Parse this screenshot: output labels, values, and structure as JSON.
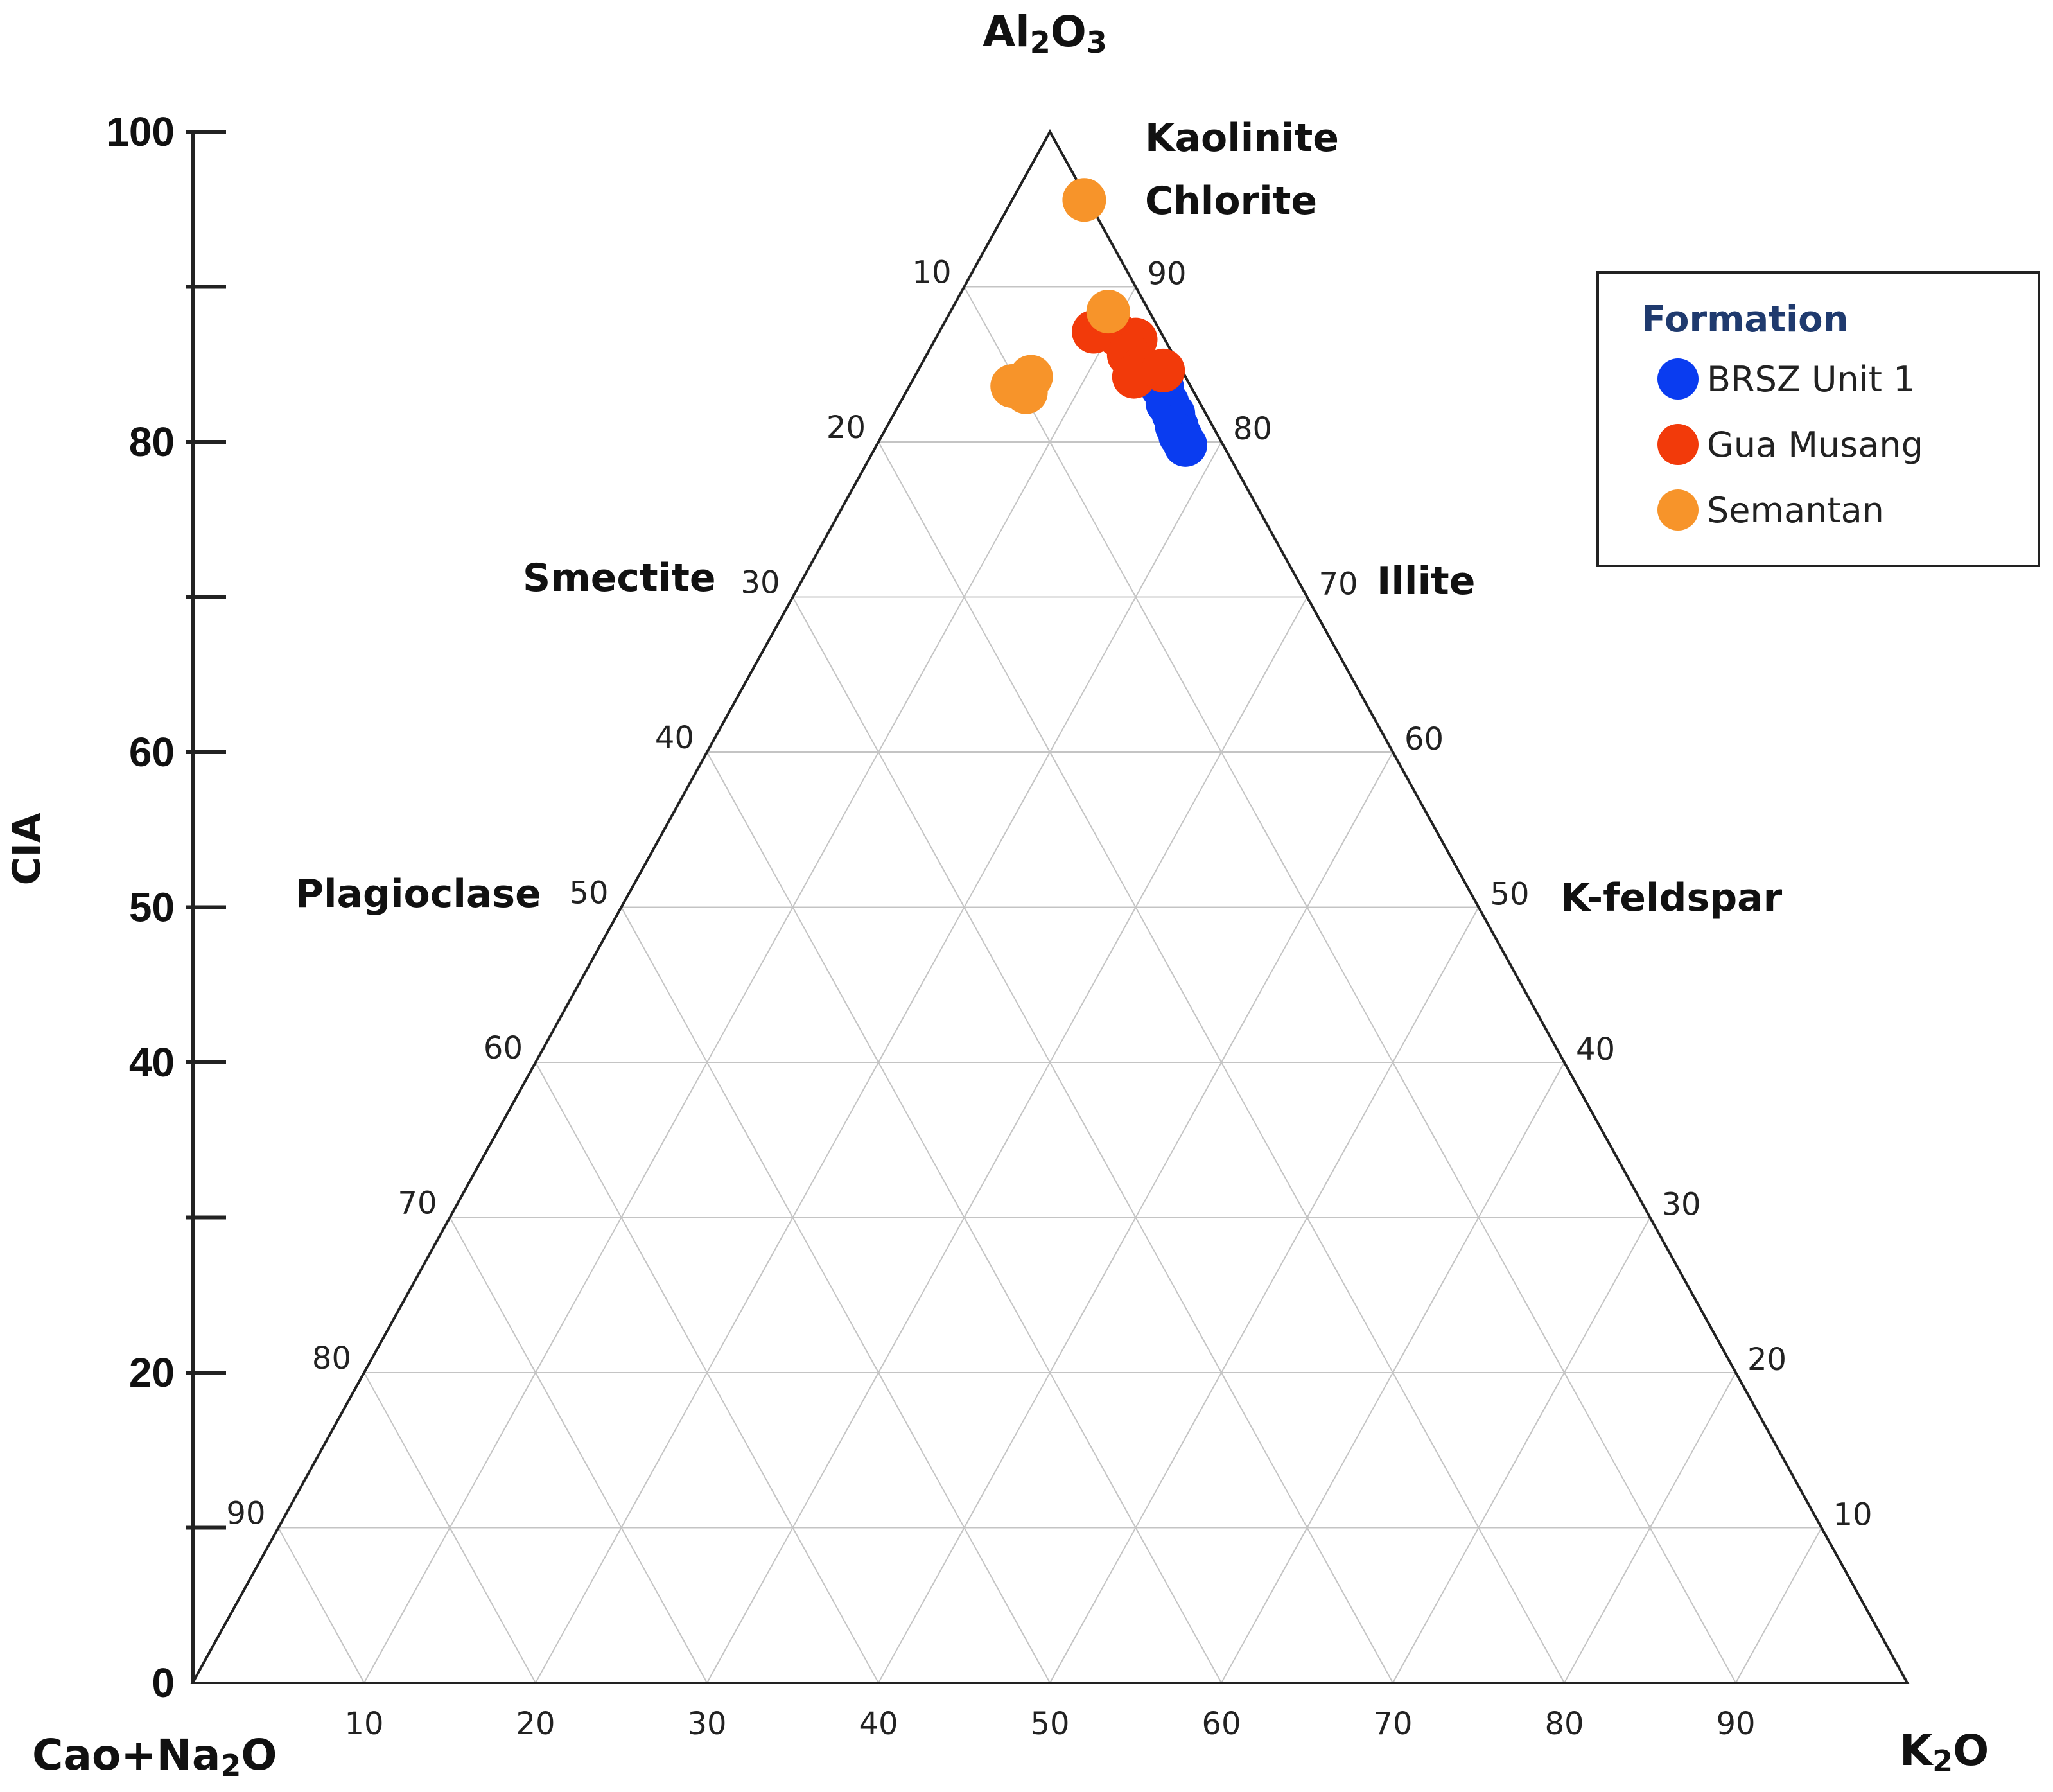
{
  "chart_data": {
    "type": "ternary-scatter",
    "apex_labels": {
      "top": "Al",
      "top_sub1": "2",
      "top_mid": "O",
      "top_sub2": "3",
      "left": "Cao+Na",
      "left_sub": "2",
      "left_end": "O",
      "right": "K",
      "right_sub": "2",
      "right_end": "O"
    },
    "left_edge_ticks": [
      "10",
      "20",
      "30",
      "40",
      "50",
      "60",
      "70",
      "80",
      "90"
    ],
    "right_edge_ticks": [
      "90",
      "80",
      "70",
      "60",
      "50",
      "40",
      "30",
      "20",
      "10"
    ],
    "bottom_ticks": [
      "10",
      "20",
      "30",
      "40",
      "50",
      "60",
      "70",
      "80",
      "90"
    ],
    "cia_axis": {
      "label": "CIA",
      "range": [
        0,
        100
      ],
      "tick_values": [
        0,
        10,
        20,
        30,
        40,
        50,
        60,
        70,
        80,
        90,
        100
      ],
      "tick_labels": [
        {
          "value": 0,
          "text": "0"
        },
        {
          "value": 20,
          "text": "20"
        },
        {
          "value": 40,
          "text": "40"
        },
        {
          "value": 50,
          "text": "50"
        },
        {
          "value": 60,
          "text": "60"
        },
        {
          "value": 80,
          "text": "80"
        },
        {
          "value": 100,
          "text": "100"
        }
      ]
    },
    "mineral_labels": {
      "kaolinite": "Kaolinite",
      "chlorite": "Chlorite",
      "smectite": "Smectite",
      "illite": "Illite",
      "plagioclase": "Plagioclase",
      "kfeldspar": "K-feldspar"
    },
    "legend": {
      "title": "Formation",
      "entries": [
        {
          "name": "BRSZ Unit 1",
          "color": "#0a3cf0"
        },
        {
          "name": "Gua Musang",
          "color": "#f23a0a"
        },
        {
          "name": "Semantan",
          "color": "#f7942a"
        }
      ]
    },
    "series": [
      {
        "name": "BRSZ Unit 1",
        "color": "#0a3cf0",
        "points": [
          {
            "al2o3": 83.5,
            "k2o": 14.8
          },
          {
            "al2o3": 82.5,
            "k2o": 15.6
          },
          {
            "al2o3": 81.8,
            "k2o": 16.3
          },
          {
            "al2o3": 81.0,
            "k2o": 16.9
          },
          {
            "al2o3": 80.4,
            "k2o": 17.4
          },
          {
            "al2o3": 79.8,
            "k2o": 18.0
          }
        ]
      },
      {
        "name": "Gua Musang",
        "color": "#f23a0a",
        "points": [
          {
            "al2o3": 87.1,
            "k2o": 9.0
          },
          {
            "al2o3": 86.9,
            "k2o": 10.5
          },
          {
            "al2o3": 86.6,
            "k2o": 11.7
          },
          {
            "al2o3": 85.6,
            "k2o": 11.8
          },
          {
            "al2o3": 84.8,
            "k2o": 13.0
          },
          {
            "al2o3": 84.2,
            "k2o": 12.8
          },
          {
            "al2o3": 84.6,
            "k2o": 14.3
          }
        ]
      },
      {
        "name": "Semantan",
        "color": "#f7942a",
        "points": [
          {
            "al2o3": 95.6,
            "k2o": 4.2
          },
          {
            "al2o3": 88.4,
            "k2o": 9.2
          },
          {
            "al2o3": 84.2,
            "k2o": 6.8
          },
          {
            "al2o3": 83.6,
            "k2o": 6.0
          },
          {
            "al2o3": 83.2,
            "k2o": 7.0
          }
        ]
      }
    ]
  }
}
